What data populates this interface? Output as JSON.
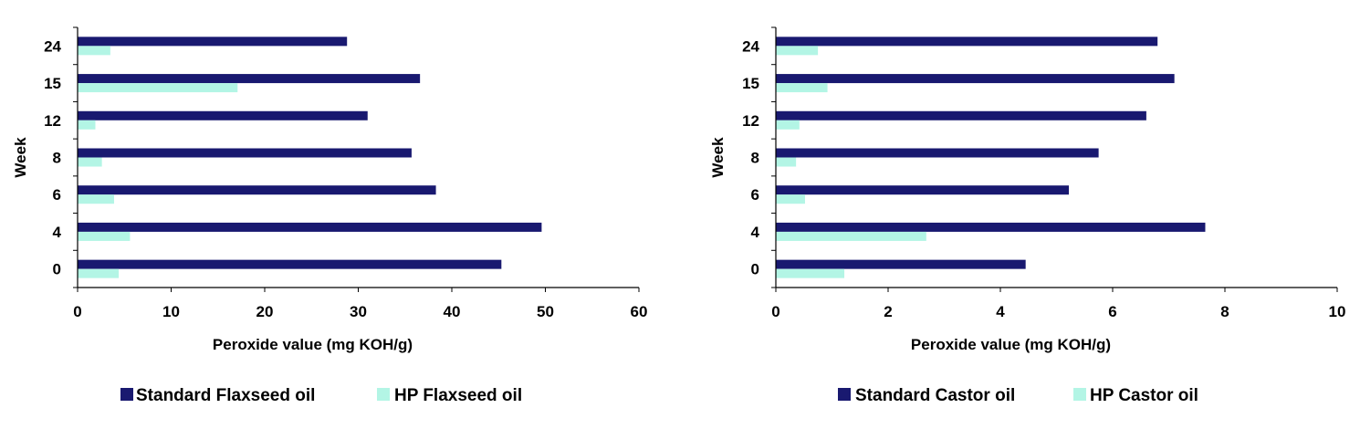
{
  "chart_data": [
    {
      "type": "bar",
      "orientation": "horizontal",
      "title": "",
      "xlabel": "Peroxide value (mg KOH/g)",
      "ylabel": "Week",
      "categories": [
        "0",
        "4",
        "6",
        "8",
        "12",
        "15",
        "24"
      ],
      "xlim": [
        0,
        60
      ],
      "xticks": [
        0,
        10,
        20,
        30,
        40,
        50,
        60
      ],
      "grid": false,
      "legend_position": "bottom",
      "series": [
        {
          "name": "Standard Flaxseed oil",
          "color": "#191970",
          "values": [
            45.3,
            49.6,
            38.3,
            35.7,
            31.0,
            36.6,
            28.8
          ]
        },
        {
          "name": "HP Flaxseed oil",
          "color": "#b3f5e5",
          "values": [
            4.4,
            5.6,
            3.9,
            2.6,
            1.9,
            17.1,
            3.5
          ]
        }
      ]
    },
    {
      "type": "bar",
      "orientation": "horizontal",
      "title": "",
      "xlabel": "Peroxide value (mg KOH/g)",
      "ylabel": "Week",
      "categories": [
        "0",
        "4",
        "6",
        "8",
        "12",
        "15",
        "24"
      ],
      "xlim": [
        0,
        10
      ],
      "xticks": [
        0,
        2,
        4,
        6,
        8,
        10
      ],
      "grid": false,
      "legend_position": "bottom",
      "series": [
        {
          "name": "Standard Castor oil",
          "color": "#191970",
          "values": [
            4.45,
            7.65,
            5.22,
            5.75,
            6.6,
            7.1,
            6.8
          ]
        },
        {
          "name": "HP Castor oil",
          "color": "#b3f5e5",
          "values": [
            1.22,
            2.68,
            0.52,
            0.36,
            0.42,
            0.92,
            0.75
          ]
        }
      ]
    }
  ]
}
